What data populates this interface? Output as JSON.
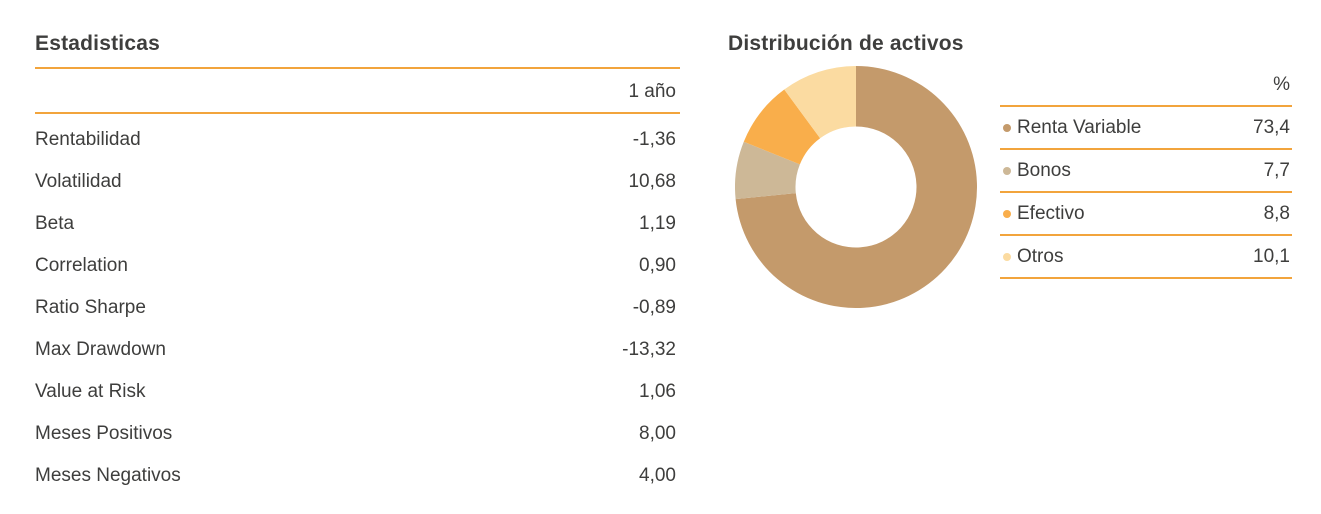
{
  "colors": {
    "accent": "#F2A43C",
    "text": "#3E3E3D",
    "background": "#FFFFFF"
  },
  "stats": {
    "title": "Estadisticas",
    "column_header": "1 año",
    "rows": [
      {
        "label": "Rentabilidad",
        "value": "-1,36"
      },
      {
        "label": "Volatilidad",
        "value": "10,68"
      },
      {
        "label": "Beta",
        "value": "1,19"
      },
      {
        "label": "Correlation",
        "value": "0,90"
      },
      {
        "label": "Ratio Sharpe",
        "value": "-0,89"
      },
      {
        "label": "Max Drawdown",
        "value": "-13,32"
      },
      {
        "label": "Value at Risk",
        "value": "1,06"
      },
      {
        "label": "Meses Positivos",
        "value": "8,00"
      },
      {
        "label": "Meses Negativos",
        "value": "4,00"
      }
    ]
  },
  "allocation": {
    "title": "Distribución de activos",
    "column_header": "%"
  },
  "chart_data": {
    "type": "pie",
    "donut": true,
    "title": "Distribución de activos",
    "labels": [
      "Renta Variable",
      "Bonos",
      "Efectivo",
      "Otros"
    ],
    "values": [
      73.4,
      7.7,
      8.8,
      10.1
    ],
    "display_values": [
      "73,4",
      "7,7",
      "8,8",
      "10,1"
    ],
    "colors": [
      "#C49A6B",
      "#CDB897",
      "#F9AE4B",
      "#FBDBA1"
    ],
    "unit": "%",
    "start_angle_deg": -90,
    "direction": "clockwise",
    "inner_radius_ratio": 0.5,
    "legend_position": "right"
  }
}
